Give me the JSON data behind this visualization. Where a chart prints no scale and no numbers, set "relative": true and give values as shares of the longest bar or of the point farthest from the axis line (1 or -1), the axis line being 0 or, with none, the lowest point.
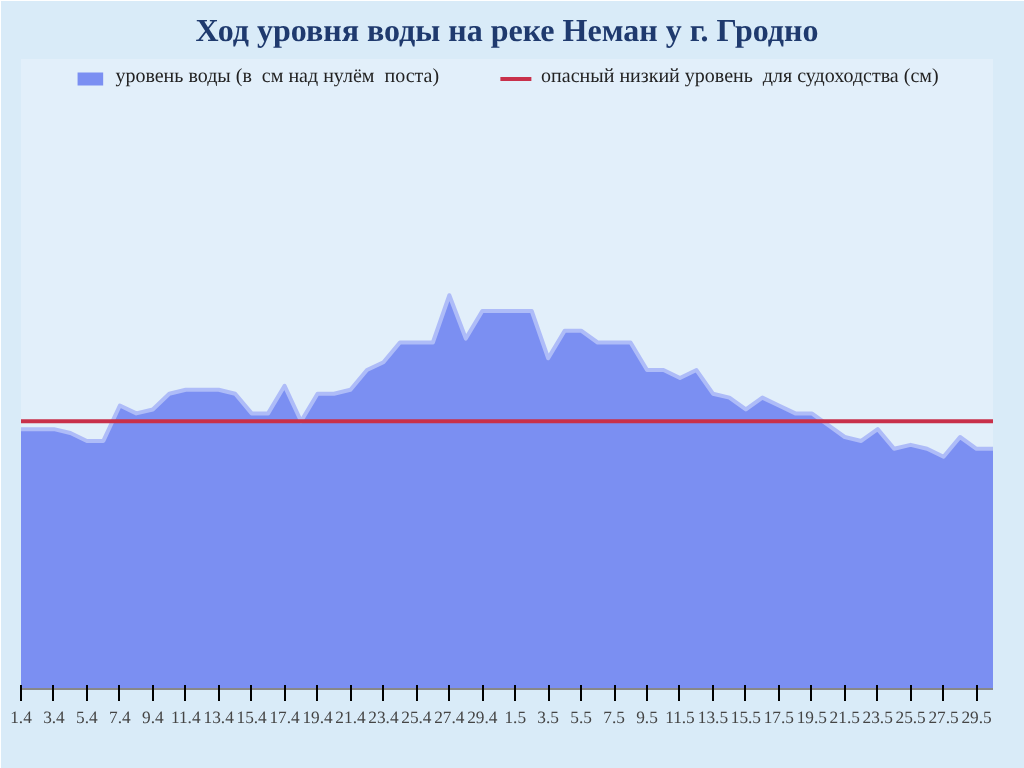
{
  "chart_data": {
    "type": "area",
    "title": "Ход уровня воды на реке Неман у г. Гродно",
    "relative": true,
    "categories": [
      "1.4",
      null,
      "3.4",
      null,
      "5.4",
      null,
      "7.4",
      null,
      "9.4",
      null,
      "11.4",
      null,
      "13.4",
      null,
      "15.4",
      null,
      "17.4",
      null,
      "19.4",
      null,
      "21.4",
      null,
      "23.4",
      null,
      "25.4",
      null,
      "27.4",
      null,
      "29.4",
      null,
      "1.5",
      null,
      "3.5",
      null,
      "5.5",
      null,
      "7.5",
      null,
      "9.5",
      null,
      "11.5",
      null,
      "13.5",
      null,
      "15.5",
      null,
      "17.5",
      null,
      "19.5",
      null,
      "21.5",
      null,
      "23.5",
      null,
      "25.5",
      null,
      "27.5",
      null,
      "29.5",
      null
    ],
    "series": [
      {
        "name": "уровень воды (в  см над нулём  поста)",
        "color": "#7b8ff2",
        "values": [
          0.66,
          0.66,
          0.66,
          0.65,
          0.63,
          0.63,
          0.72,
          0.7,
          0.71,
          0.75,
          0.76,
          0.76,
          0.76,
          0.75,
          0.7,
          0.7,
          0.77,
          0.68,
          0.75,
          0.75,
          0.76,
          0.81,
          0.83,
          0.88,
          0.88,
          0.88,
          1.0,
          0.89,
          0.96,
          0.96,
          0.96,
          0.96,
          0.84,
          0.91,
          0.91,
          0.88,
          0.88,
          0.88,
          0.81,
          0.81,
          0.79,
          0.81,
          0.75,
          0.74,
          0.71,
          0.74,
          0.72,
          0.7,
          0.7,
          0.67,
          0.64,
          0.63,
          0.66,
          0.61,
          0.62,
          0.61,
          0.59,
          0.64,
          0.61,
          0.61
        ]
      }
    ],
    "ref_lines": [
      {
        "axis": "y",
        "value": 0.68,
        "label": "опасный низкий уровень  для судоходства (см)",
        "color": "#c8304a"
      }
    ],
    "legend": "top",
    "grid": false
  }
}
